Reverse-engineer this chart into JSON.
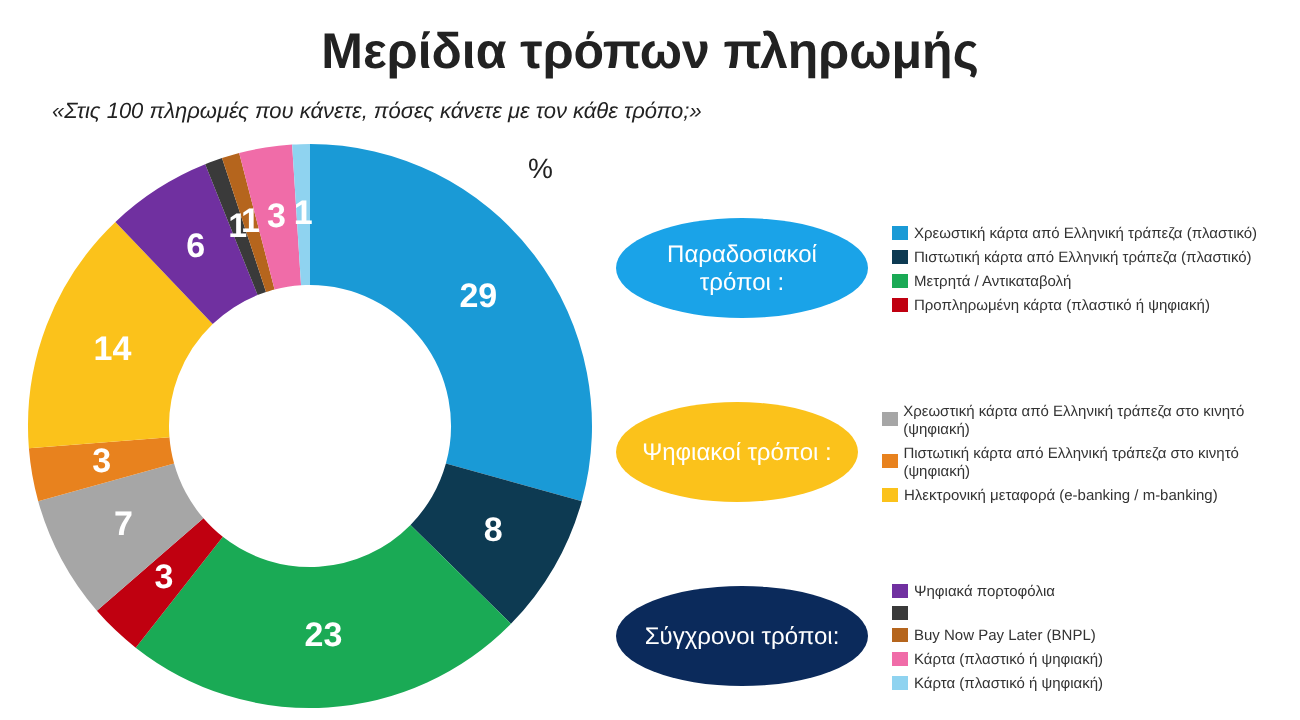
{
  "chart_data": {
    "type": "donut",
    "title": "Μερίδια τρόπων πληρωμής",
    "subtitle": "«Στις 100 πληρωμές που κάνετε, πόσες κάνετε με τον κάθε τρόπο;»",
    "categories": [
      "Χρεωστική κάρτα από Ελληνική τράπεζα (πλαστικό)",
      "Πιστωτική κάρτα από Ελληνική τράπεζα (πλαστικό)",
      "Μετρητά / Αντικαταβολή",
      "Προπληρωμένη κάρτα (πλαστικό ή ψηφιακή)",
      "Χρεωστική κάρτα από Ελληνική τράπεζα στο κινητό (ψηφιακή)",
      "Πιστωτική κάρτα από Ελληνική τράπεζα στο κινητό (ψηφιακή)",
      "Ηλεκτρονική μεταφορά (e-banking / m-banking)",
      "Ψηφιακά πορτοφόλια",
      null,
      "Buy Now Pay Later (BNPL)",
      "Κάρτα (πλαστικό ή ψηφιακή)",
      "Κάρτα (πλαστικό ή ψηφιακή)"
    ],
    "values": [
      29,
      8,
      23,
      3,
      7,
      3,
      14,
      6,
      1,
      1,
      3,
      1
    ],
    "colors": [
      "#1a9ad6",
      "#0d3a52",
      "#1aaa55",
      "#c00010",
      "#a6a6a6",
      "#e8821e",
      "#fbc21b",
      "#7030a0",
      "#3a3a3a",
      "#b5651d",
      "#f06ca8",
      "#8fd3f0"
    ],
    "data_labels": true,
    "legend": "right",
    "annotations": [
      "%",
      {
        "text": "Παραδοσιακοί τρόποι :",
        "x": "Χρεωστική κάρτα από Ελληνική τράπεζα (πλαστικό)"
      },
      {
        "text": "Ψηφιακοί τρόποι :",
        "x": "Χρεωστική κάρτα από Ελληνική τράπεζα στο κινητό (ψηφιακή)"
      },
      {
        "text": "Σύγχρονοι τρόποι:",
        "x": "Ψηφιακά πορτοφόλια"
      }
    ]
  }
}
